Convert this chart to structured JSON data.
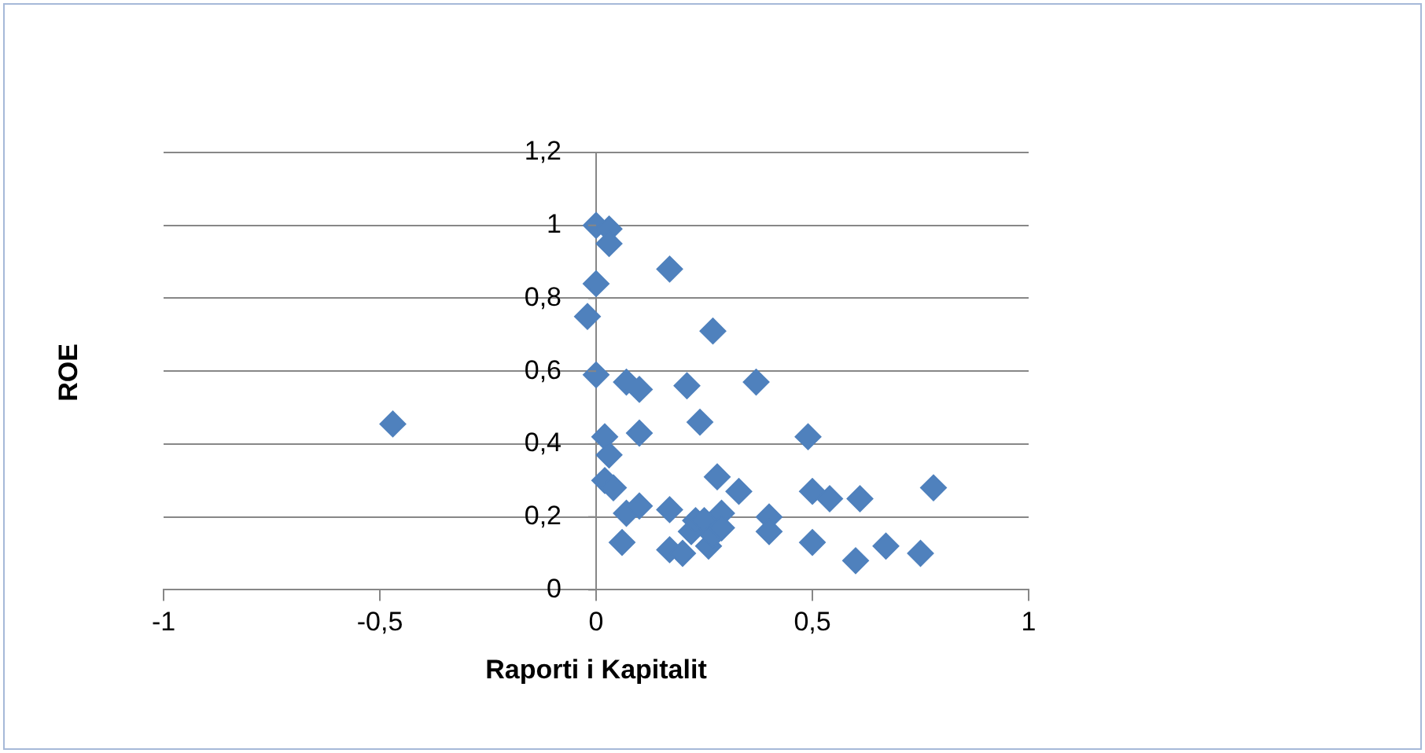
{
  "chart_data": {
    "type": "scatter",
    "xlabel": "Raporti i Kapitalit",
    "ylabel": "ROE",
    "marker": "diamond",
    "grid": "y",
    "legend": false,
    "xlim": [
      -1,
      1
    ],
    "xticks": [
      -1,
      {
        "value": -0.5,
        "label": "-0,5"
      },
      0,
      {
        "value": 0.5,
        "label": "0,5"
      },
      1
    ],
    "ylim": [
      0,
      1.2
    ],
    "yticks": [
      0,
      {
        "value": 0.2,
        "label": "0,2"
      },
      {
        "value": 0.4,
        "label": "0,4"
      },
      {
        "value": 0.6,
        "label": "0,6"
      },
      {
        "value": 0.8,
        "label": "0,8"
      },
      1,
      {
        "value": 1.2,
        "label": "1,2"
      }
    ],
    "series": [
      {
        "color": "#4f81bd",
        "x": [
          -0.47,
          0,
          0.03,
          0.03,
          0,
          -0.02,
          0.17,
          0.27,
          0,
          0.07,
          0.1,
          0.21,
          0.37,
          0.24,
          0.02,
          0.1,
          0.49,
          0.03,
          0.02,
          0.04,
          0.07,
          0.1,
          0.17,
          0.06,
          0.17,
          0.2,
          0.22,
          0.23,
          0.25,
          0.26,
          0.27,
          0.28,
          0.33,
          0.29,
          0.29,
          0.4,
          0.4,
          0.5,
          0.54,
          0.5,
          0.61,
          0.6,
          0.67,
          0.75,
          0.78
        ],
        "values": [
          0.455,
          1.0,
          0.99,
          0.95,
          0.84,
          0.75,
          0.88,
          0.71,
          0.59,
          0.57,
          0.55,
          0.56,
          0.57,
          0.46,
          0.42,
          0.43,
          0.42,
          0.37,
          0.3,
          0.28,
          0.21,
          0.23,
          0.22,
          0.13,
          0.11,
          0.1,
          0.16,
          0.19,
          0.19,
          0.12,
          0.15,
          0.31,
          0.27,
          0.21,
          0.17,
          0.2,
          0.16,
          0.27,
          0.25,
          0.13,
          0.25,
          0.08,
          0.12,
          0.1,
          0.28
        ]
      }
    ]
  }
}
